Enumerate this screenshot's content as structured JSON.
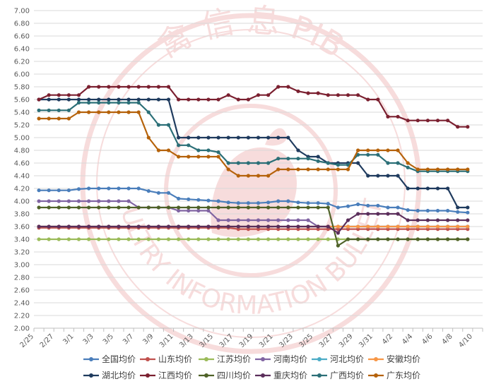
{
  "watermark": {
    "top_text": "禽 信 息 PIB",
    "bottom_text": "POULTRY INFORMATION BULLETIN"
  },
  "chart_data": {
    "type": "line",
    "title": "",
    "xlabel": "",
    "ylabel": "",
    "ylim": [
      2.0,
      7.0
    ],
    "yticks": [
      "2.00",
      "2.20",
      "2.40",
      "2.60",
      "2.80",
      "3.00",
      "3.20",
      "3.40",
      "3.60",
      "3.80",
      "4.00",
      "4.20",
      "4.40",
      "4.60",
      "4.80",
      "5.00",
      "5.20",
      "5.40",
      "5.60",
      "5.80",
      "6.00",
      "6.20",
      "6.40",
      "6.60",
      "6.80",
      "7.00"
    ],
    "grid": true,
    "legend_position": "bottom",
    "x": [
      "2/25",
      "2/26",
      "2/27",
      "2/28",
      "3/1",
      "3/2",
      "3/3",
      "3/4",
      "3/5",
      "3/6",
      "3/7",
      "3/8",
      "3/9",
      "3/10",
      "3/11",
      "3/12",
      "3/13",
      "3/14",
      "3/15",
      "3/16",
      "3/17",
      "3/18",
      "3/19",
      "3/20",
      "3/21",
      "3/22",
      "3/23",
      "3/24",
      "3/25",
      "3/26",
      "3/27",
      "3/28",
      "3/29",
      "3/30",
      "3/31",
      "4/1",
      "4/2",
      "4/3",
      "4/4",
      "4/5",
      "4/6",
      "4/7",
      "4/8",
      "4/9"
    ],
    "x_tick_labels": [
      "2/25",
      "2/27",
      "3/1",
      "3/3",
      "3/5",
      "3/7",
      "3/9",
      "3/11",
      "3/13",
      "3/15",
      "3/17",
      "3/19",
      "3/21",
      "3/23",
      "3/25",
      "3/27",
      "3/29",
      "3/31",
      "4/2",
      "4/4",
      "4/6",
      "4/8",
      "4/10"
    ],
    "series": [
      {
        "name": "全国均价",
        "color": "#4a7ebb",
        "values": [
          4.17,
          4.17,
          4.17,
          4.17,
          4.19,
          4.2,
          4.2,
          4.2,
          4.2,
          4.2,
          4.2,
          4.16,
          4.13,
          4.13,
          4.04,
          4.03,
          4.02,
          4.01,
          4.0,
          3.98,
          3.97,
          3.97,
          3.97,
          3.98,
          4.0,
          4.0,
          3.98,
          3.97,
          3.97,
          3.96,
          3.9,
          3.92,
          3.95,
          3.93,
          3.93,
          3.9,
          3.9,
          3.86,
          3.85,
          3.85,
          3.85,
          3.85,
          3.83,
          3.82
        ]
      },
      {
        "name": "山东均价",
        "color": "#c0504d",
        "values": [
          3.58,
          3.58,
          3.58,
          3.58,
          3.58,
          3.58,
          3.58,
          3.58,
          3.58,
          3.58,
          3.58,
          3.58,
          3.58,
          3.58,
          3.58,
          3.58,
          3.58,
          3.58,
          3.58,
          3.58,
          3.56,
          3.56,
          3.56,
          3.56,
          3.56,
          3.56,
          3.56,
          3.56,
          3.56,
          3.56,
          3.56,
          3.56,
          3.56,
          3.56,
          3.56,
          3.56,
          3.56,
          3.56,
          3.56,
          3.56,
          3.56,
          3.56,
          3.56,
          3.56
        ]
      },
      {
        "name": "江苏均价",
        "color": "#9bbb59",
        "values": [
          3.4,
          3.4,
          3.4,
          3.4,
          3.4,
          3.4,
          3.4,
          3.4,
          3.4,
          3.4,
          3.4,
          3.4,
          3.4,
          3.4,
          3.4,
          3.4,
          3.4,
          3.4,
          3.4,
          3.4,
          3.4,
          3.4,
          3.4,
          3.4,
          3.4,
          3.4,
          3.4,
          3.4,
          3.4,
          3.4,
          3.4,
          3.4,
          3.4,
          3.4,
          3.4,
          3.4,
          3.4,
          3.4,
          3.4,
          3.4,
          3.4,
          3.4,
          3.4,
          3.4
        ]
      },
      {
        "name": "河南均价",
        "color": "#8064a2",
        "values": [
          4.0,
          4.0,
          4.0,
          4.0,
          4.0,
          4.0,
          4.0,
          4.0,
          4.0,
          4.0,
          3.9,
          3.9,
          3.9,
          3.9,
          3.85,
          3.85,
          3.85,
          3.85,
          3.7,
          3.7,
          3.7,
          3.7,
          3.7,
          3.7,
          3.7,
          3.7,
          3.7,
          3.7,
          3.6,
          3.6,
          3.6,
          3.6,
          3.6,
          3.6,
          3.6,
          3.6,
          3.6,
          3.6,
          3.6,
          3.6,
          3.6,
          3.6,
          3.6,
          3.6
        ]
      },
      {
        "name": "河北均价",
        "color": "#4bacc6",
        "values": [
          3.6,
          3.6,
          3.6,
          3.6,
          3.6,
          3.6,
          3.6,
          3.6,
          3.6,
          3.6,
          3.6,
          3.6,
          3.6,
          3.6,
          3.6,
          3.6,
          3.6,
          3.6,
          3.6,
          3.6,
          3.6,
          3.6,
          3.6,
          3.6,
          3.6,
          3.6,
          3.6,
          3.6,
          3.6,
          3.6,
          3.6,
          3.6,
          3.6,
          3.6,
          3.6,
          3.6,
          3.6,
          3.6,
          3.6,
          3.6,
          3.6,
          3.6,
          3.6,
          3.6
        ]
      },
      {
        "name": "安徽均价",
        "color": "#f79646",
        "values": [
          3.6,
          3.6,
          3.6,
          3.6,
          3.6,
          3.6,
          3.6,
          3.6,
          3.6,
          3.6,
          3.6,
          3.6,
          3.6,
          3.6,
          3.6,
          3.6,
          3.6,
          3.6,
          3.6,
          3.6,
          3.6,
          3.6,
          3.6,
          3.6,
          3.6,
          3.6,
          3.6,
          3.6,
          3.6,
          3.6,
          3.6,
          3.6,
          3.6,
          3.6,
          3.6,
          3.6,
          3.6,
          3.6,
          3.6,
          3.6,
          3.6,
          3.6,
          3.6,
          3.6
        ]
      },
      {
        "name": "湖北均价",
        "color": "#1f3b5e",
        "values": [
          5.6,
          5.6,
          5.6,
          5.6,
          5.6,
          5.6,
          5.6,
          5.6,
          5.6,
          5.6,
          5.6,
          5.6,
          5.6,
          5.6,
          5.0,
          5.0,
          5.0,
          5.0,
          5.0,
          5.0,
          5.0,
          5.0,
          5.0,
          5.0,
          5.0,
          5.0,
          4.8,
          4.7,
          4.7,
          4.6,
          4.6,
          4.6,
          4.6,
          4.4,
          4.4,
          4.4,
          4.4,
          4.2,
          4.2,
          4.2,
          4.2,
          4.2,
          3.9,
          3.9
        ]
      },
      {
        "name": "江西均价",
        "color": "#7b2030",
        "values": [
          5.6,
          5.67,
          5.67,
          5.67,
          5.67,
          5.8,
          5.8,
          5.8,
          5.8,
          5.8,
          5.8,
          5.8,
          5.8,
          5.8,
          5.6,
          5.6,
          5.6,
          5.6,
          5.6,
          5.67,
          5.6,
          5.6,
          5.67,
          5.67,
          5.8,
          5.8,
          5.73,
          5.7,
          5.7,
          5.67,
          5.67,
          5.67,
          5.67,
          5.6,
          5.6,
          5.33,
          5.33,
          5.27,
          5.27,
          5.27,
          5.27,
          5.27,
          5.17,
          5.17
        ]
      },
      {
        "name": "四川均价",
        "color": "#4f6228",
        "values": [
          3.9,
          3.9,
          3.9,
          3.9,
          3.9,
          3.9,
          3.9,
          3.9,
          3.9,
          3.9,
          3.9,
          3.9,
          3.9,
          3.9,
          3.9,
          3.9,
          3.9,
          3.9,
          3.9,
          3.9,
          3.9,
          3.9,
          3.9,
          3.9,
          3.9,
          3.9,
          3.9,
          3.9,
          3.9,
          3.9,
          3.3,
          3.4,
          3.4,
          3.4,
          3.4,
          3.4,
          3.4,
          3.4,
          3.4,
          3.4,
          3.4,
          3.4,
          3.4,
          3.4
        ]
      },
      {
        "name": "重庆均价",
        "color": "#5b2e5b",
        "values": [
          3.6,
          3.6,
          3.6,
          3.6,
          3.6,
          3.6,
          3.6,
          3.6,
          3.6,
          3.6,
          3.6,
          3.6,
          3.6,
          3.6,
          3.6,
          3.6,
          3.6,
          3.6,
          3.6,
          3.6,
          3.6,
          3.6,
          3.6,
          3.6,
          3.6,
          3.6,
          3.6,
          3.6,
          3.6,
          3.6,
          3.5,
          3.7,
          3.8,
          3.8,
          3.8,
          3.8,
          3.8,
          3.7,
          3.7,
          3.7,
          3.7,
          3.7,
          3.7,
          3.7
        ]
      },
      {
        "name": "广西均价",
        "color": "#2b6f77",
        "values": [
          5.43,
          5.43,
          5.43,
          5.43,
          5.55,
          5.55,
          5.55,
          5.55,
          5.55,
          5.55,
          5.55,
          5.4,
          5.2,
          5.2,
          4.88,
          4.88,
          4.8,
          4.8,
          4.77,
          4.6,
          4.6,
          4.6,
          4.6,
          4.6,
          4.67,
          4.67,
          4.67,
          4.67,
          4.63,
          4.6,
          4.57,
          4.57,
          4.73,
          4.73,
          4.73,
          4.6,
          4.6,
          4.53,
          4.47,
          4.47,
          4.47,
          4.47,
          4.47,
          4.47
        ]
      },
      {
        "name": "广东均价",
        "color": "#b5620a",
        "values": [
          5.3,
          5.3,
          5.3,
          5.3,
          5.4,
          5.4,
          5.4,
          5.4,
          5.4,
          5.4,
          5.4,
          5.0,
          4.8,
          4.8,
          4.7,
          4.7,
          4.7,
          4.7,
          4.7,
          4.5,
          4.4,
          4.4,
          4.4,
          4.4,
          4.5,
          4.5,
          4.5,
          4.5,
          4.5,
          4.5,
          4.5,
          4.5,
          4.8,
          4.8,
          4.8,
          4.8,
          4.8,
          4.6,
          4.5,
          4.5,
          4.5,
          4.5,
          4.5,
          4.5
        ]
      }
    ]
  }
}
